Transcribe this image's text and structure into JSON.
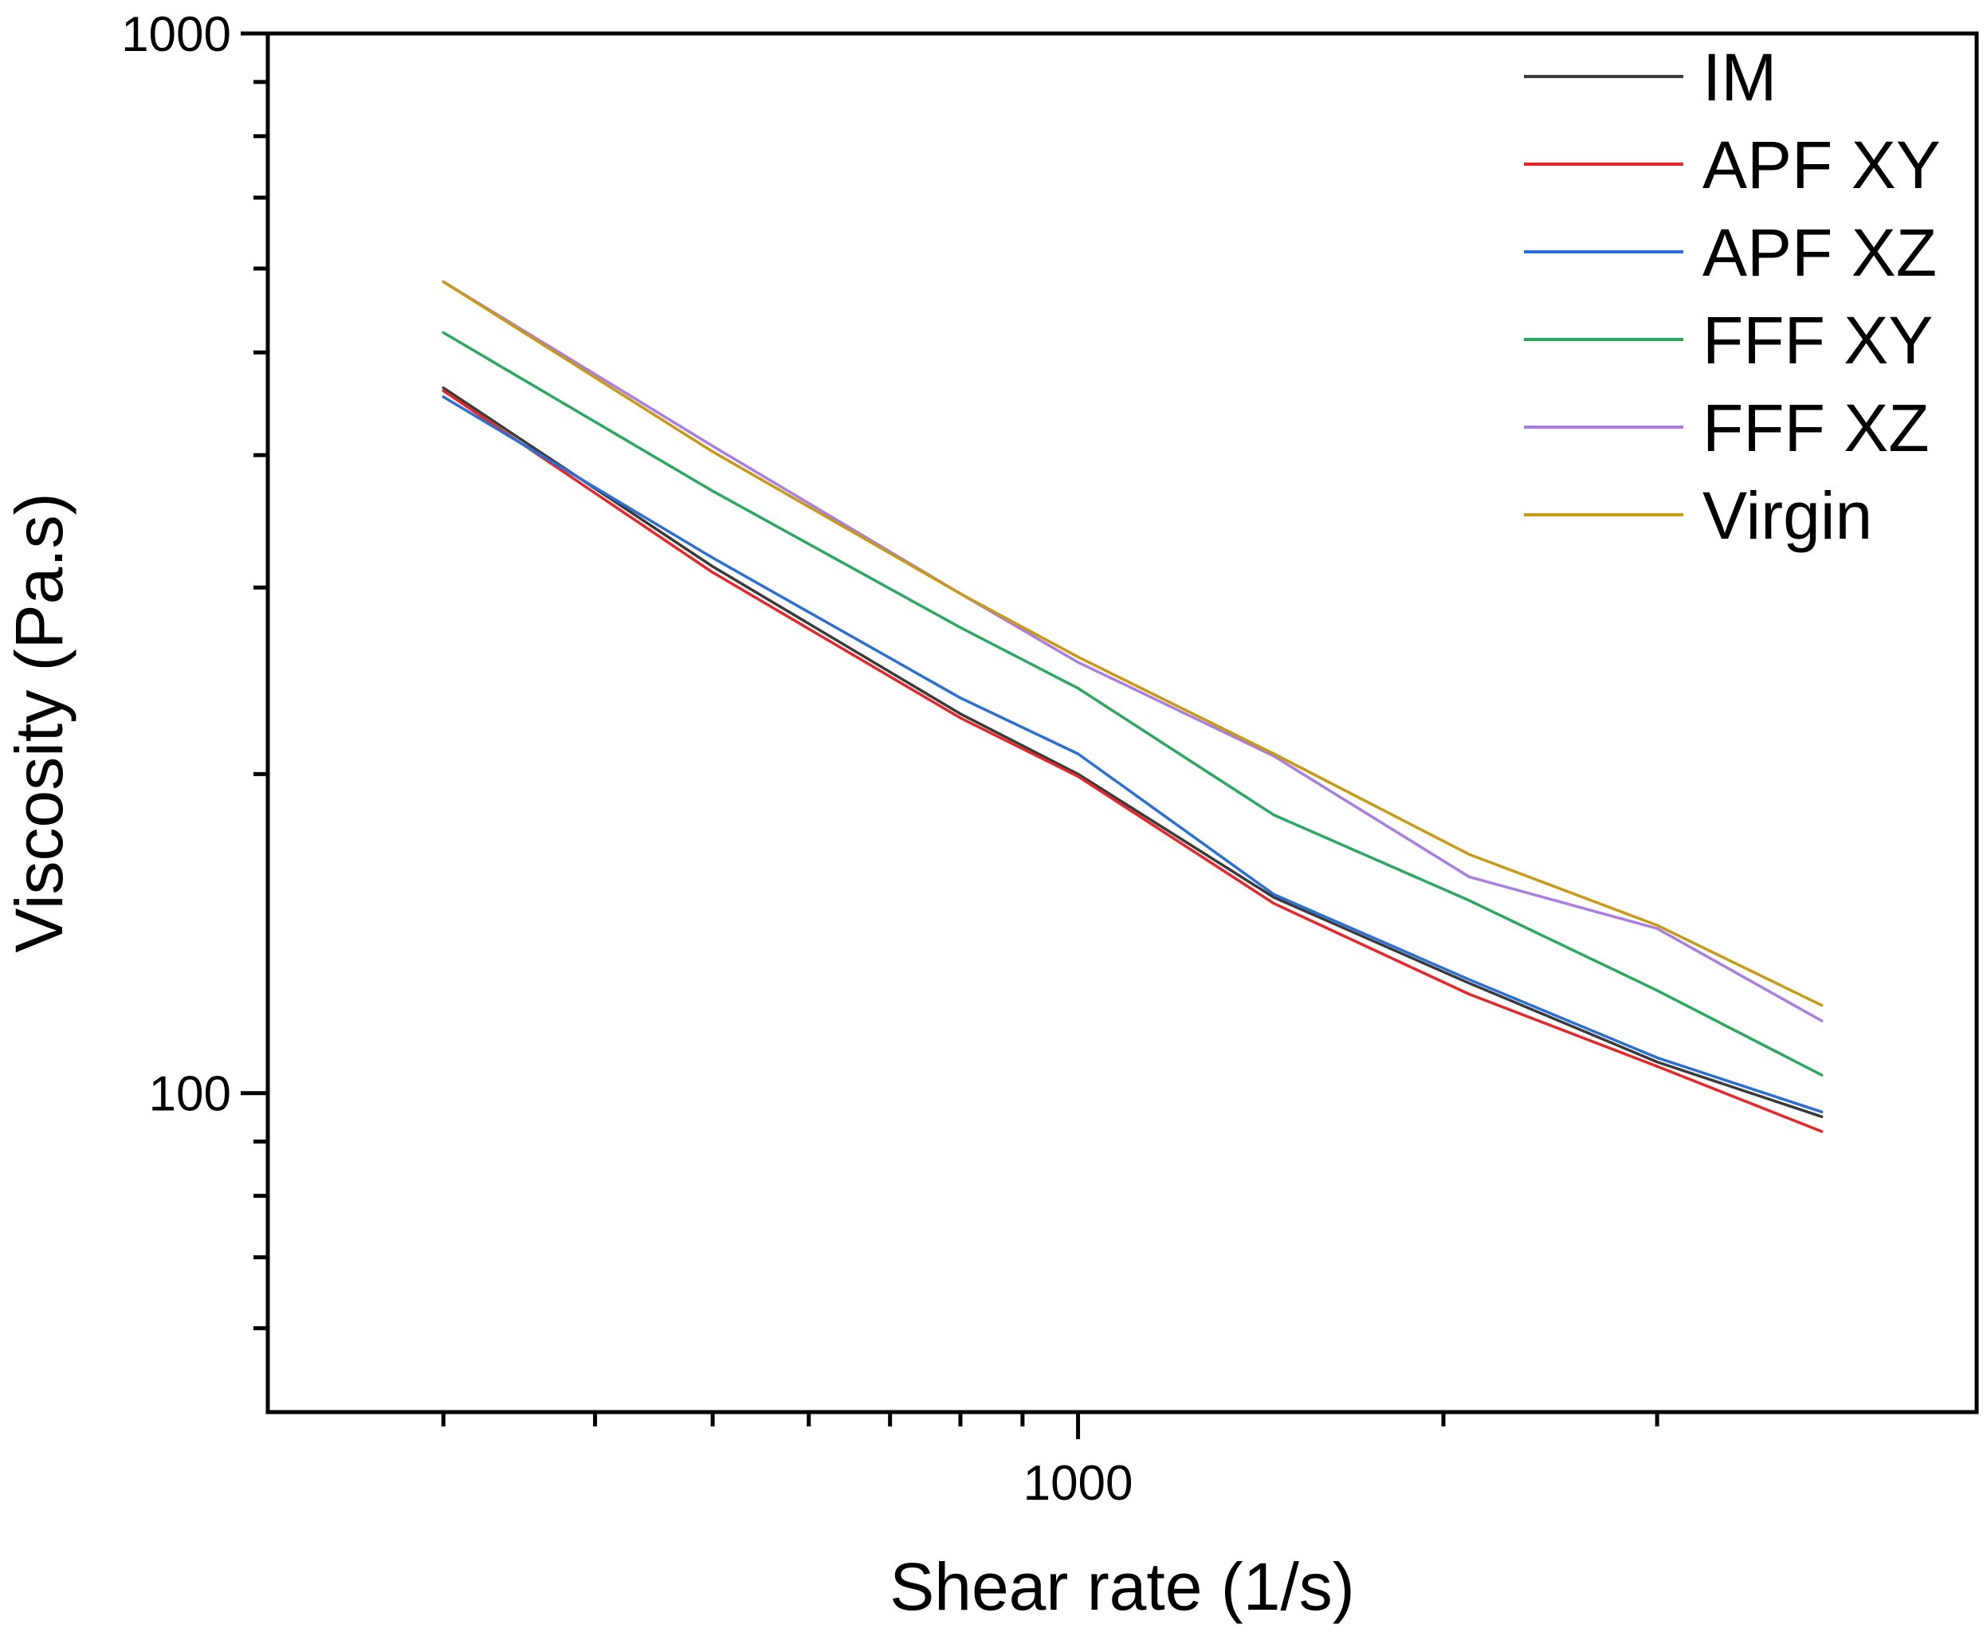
{
  "chart_data": {
    "type": "line",
    "scale": {
      "x": "log",
      "y": "log"
    },
    "xlabel": "Shear rate (1/s)",
    "ylabel": "Viscosity (Pa.s)",
    "xlim": [
      215,
      5500
    ],
    "ylim": [
      50,
      1000
    ],
    "x_ticks_major": [
      1000
    ],
    "x_ticks_major_labels": [
      "1000"
    ],
    "x_ticks_minor": [
      300,
      400,
      500,
      600,
      700,
      800,
      900,
      2000,
      3000
    ],
    "y_ticks_major": [
      100,
      1000
    ],
    "y_ticks_major_labels": [
      "100",
      "1000"
    ],
    "y_ticks_minor": [
      60,
      70,
      80,
      90,
      200,
      300,
      400,
      500,
      600,
      700,
      800,
      900
    ],
    "legend_position": "top-right",
    "series": [
      {
        "name": "IM",
        "color": "#3a3a3a",
        "x": [
          300,
          500,
          800,
          1000,
          1450,
          2100,
          3000,
          4100
        ],
        "y": [
          463,
          314,
          228,
          200,
          153,
          127,
          107,
          95
        ]
      },
      {
        "name": "APF XY",
        "color": "#e8262a",
        "x": [
          300,
          500,
          800,
          1000,
          1450,
          2100,
          3000,
          4100
        ],
        "y": [
          460,
          310,
          226,
          199,
          151,
          124,
          106,
          92
        ]
      },
      {
        "name": "APF XZ",
        "color": "#2a6fd6",
        "x": [
          300,
          500,
          800,
          1000,
          1450,
          2100,
          3000,
          4100
        ],
        "y": [
          454,
          320,
          236,
          209,
          154,
          128,
          108,
          96
        ]
      },
      {
        "name": "FFF XY",
        "color": "#2aa860",
        "x": [
          300,
          500,
          800,
          1000,
          1450,
          2100,
          3000,
          4100
        ],
        "y": [
          522,
          370,
          275,
          241,
          183,
          152,
          125,
          104
        ]
      },
      {
        "name": "FFF XZ",
        "color": "#a97ee0",
        "x": [
          300,
          500,
          800,
          1000,
          1450,
          2100,
          3000,
          4100
        ],
        "y": [
          583,
          408,
          296,
          255,
          208,
          160,
          143,
          117
        ]
      },
      {
        "name": "Virgin",
        "color": "#c89a14",
        "x": [
          300,
          500,
          800,
          1000,
          1450,
          2100,
          3000,
          4100
        ],
        "y": [
          583,
          403,
          296,
          258,
          209,
          168,
          144,
          121
        ]
      }
    ]
  }
}
